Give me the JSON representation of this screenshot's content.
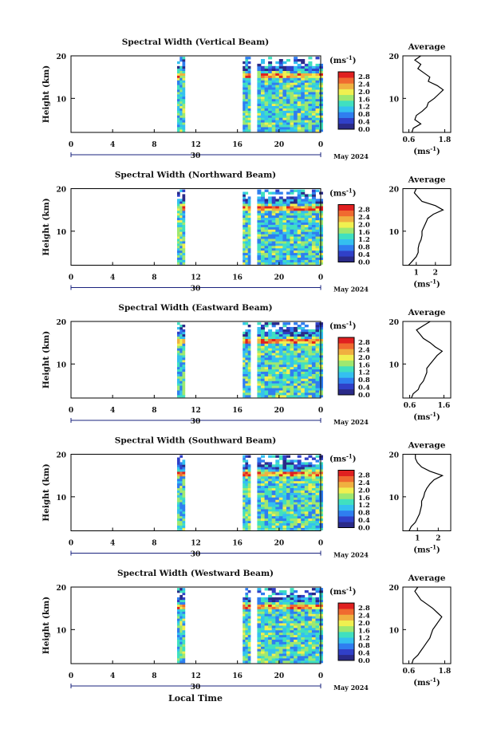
{
  "figure": {
    "xlabel": "Local Time",
    "date_label": "May 2024",
    "day_label": "30",
    "unit_label": "(ms",
    "unit_sup": "-1",
    "unit_close": ")",
    "avg_title": "Average",
    "avg_xlabel": "(ms",
    "ylabel": "Height (km)",
    "colors": [
      "#2a2a88",
      "#3040c8",
      "#2f7ef0",
      "#34c0f0",
      "#40e0c0",
      "#9ee870",
      "#f0f050",
      "#f0b040",
      "#f06a30",
      "#e02020"
    ]
  },
  "chart_data": [
    {
      "type": "heatmap",
      "title": "Spectral Width (Vertical Beam)",
      "x_ticks": [
        "0",
        "4",
        "8",
        "12",
        "16",
        "20",
        "0"
      ],
      "xlim": [
        0,
        24
      ],
      "y_ticks": [
        "20",
        "10"
      ],
      "ylim": [
        2,
        20
      ],
      "colorbar_ticks": [
        "2.8",
        "2.4",
        "2.0",
        "1.6",
        "1.2",
        "0.8",
        "0.4",
        "0.0"
      ],
      "colorbar_range": [
        0,
        2.8
      ],
      "avg_x_ticks": [
        "0.6",
        "1.8"
      ],
      "avg_xlim": [
        0.4,
        2.0
      ],
      "avg_profile": {
        "height": [
          2,
          3,
          4,
          5,
          6,
          7,
          8,
          9,
          10,
          11,
          12,
          13,
          14,
          15,
          16,
          17,
          18,
          19,
          20
        ],
        "value": [
          0.7,
          0.75,
          1.0,
          0.8,
          0.85,
          1.05,
          1.2,
          1.25,
          1.45,
          1.6,
          1.75,
          1.55,
          1.25,
          1.3,
          1.1,
          0.9,
          1.0,
          0.8,
          1.0
        ]
      }
    },
    {
      "type": "heatmap",
      "title": "Spectral Width (Northward Beam)",
      "x_ticks": [
        "0",
        "4",
        "8",
        "12",
        "16",
        "20",
        "0"
      ],
      "xlim": [
        0,
        24
      ],
      "y_ticks": [
        "20",
        "10"
      ],
      "ylim": [
        2,
        20
      ],
      "colorbar_ticks": [
        "2.8",
        "2.4",
        "2.0",
        "1.6",
        "1.2",
        "0.8",
        "0.4",
        "0.0"
      ],
      "colorbar_range": [
        0,
        2.8
      ],
      "avg_x_ticks": [
        "1",
        "2"
      ],
      "avg_xlim": [
        0.3,
        2.8
      ],
      "avg_profile": {
        "height": [
          2,
          3,
          4,
          5,
          6,
          7,
          8,
          9,
          10,
          11,
          12,
          13,
          14,
          15,
          16,
          17,
          18,
          19,
          20
        ],
        "value": [
          0.6,
          0.8,
          1.0,
          1.1,
          1.1,
          1.15,
          1.25,
          1.3,
          1.3,
          1.4,
          1.5,
          1.6,
          1.9,
          2.4,
          2.0,
          1.3,
          1.1,
          0.9,
          1.0
        ]
      }
    },
    {
      "type": "heatmap",
      "title": "Spectral Width (Eastward Beam)",
      "x_ticks": [
        "0",
        "4",
        "8",
        "12",
        "16",
        "20",
        "0"
      ],
      "xlim": [
        0,
        24
      ],
      "y_ticks": [
        "20",
        "10"
      ],
      "ylim": [
        2,
        20
      ],
      "colorbar_ticks": [
        "2.8",
        "2.4",
        "2.0",
        "1.6",
        "1.2",
        "0.8",
        "0.4",
        "0.0"
      ],
      "colorbar_range": [
        0,
        2.8
      ],
      "avg_x_ticks": [
        "0.6",
        "1.6"
      ],
      "avg_xlim": [
        0.4,
        1.8
      ],
      "avg_profile": {
        "height": [
          2,
          3,
          4,
          5,
          6,
          7,
          8,
          9,
          10,
          11,
          12,
          13,
          14,
          15,
          16,
          17,
          18,
          19,
          20
        ],
        "value": [
          0.65,
          0.7,
          0.85,
          0.9,
          1.0,
          1.05,
          1.1,
          1.1,
          1.2,
          1.3,
          1.4,
          1.55,
          1.35,
          1.2,
          1.0,
          0.9,
          0.8,
          1.0,
          1.2
        ]
      }
    },
    {
      "type": "heatmap",
      "title": "Spectral Width (Southward Beam)",
      "x_ticks": [
        "0",
        "4",
        "8",
        "12",
        "16",
        "20",
        "0"
      ],
      "xlim": [
        0,
        24
      ],
      "y_ticks": [
        "20",
        "10"
      ],
      "ylim": [
        2,
        20
      ],
      "colorbar_ticks": [
        "2.8",
        "2.4",
        "2.0",
        "1.6",
        "1.2",
        "0.8",
        "0.4",
        "0.0"
      ],
      "colorbar_range": [
        0,
        2.8
      ],
      "avg_x_ticks": [
        "1",
        "2"
      ],
      "avg_xlim": [
        0.3,
        2.6
      ],
      "avg_profile": {
        "height": [
          2,
          3,
          4,
          5,
          6,
          7,
          8,
          9,
          10,
          11,
          12,
          13,
          14,
          15,
          16,
          17,
          18,
          19,
          20
        ],
        "value": [
          0.6,
          0.7,
          0.9,
          1.0,
          1.1,
          1.15,
          1.2,
          1.2,
          1.3,
          1.35,
          1.45,
          1.6,
          1.8,
          2.2,
          1.6,
          1.2,
          1.0,
          0.9,
          0.9
        ]
      }
    },
    {
      "type": "heatmap",
      "title": "Spectral Width (Westward Beam)",
      "x_ticks": [
        "0",
        "4",
        "8",
        "12",
        "16",
        "20",
        "0"
      ],
      "xlim": [
        0,
        24
      ],
      "y_ticks": [
        "20",
        "10"
      ],
      "ylim": [
        2,
        20
      ],
      "colorbar_ticks": [
        "2.8",
        "2.4",
        "2.0",
        "1.6",
        "1.2",
        "0.8",
        "0.4",
        "0.0"
      ],
      "colorbar_range": [
        0,
        2.8
      ],
      "avg_x_ticks": [
        "0.6",
        "1.8"
      ],
      "avg_xlim": [
        0.4,
        2.0
      ],
      "avg_profile": {
        "height": [
          2,
          3,
          4,
          5,
          6,
          7,
          8,
          9,
          10,
          11,
          12,
          13,
          14,
          15,
          16,
          17,
          18,
          19,
          20
        ],
        "value": [
          0.7,
          0.75,
          0.9,
          1.0,
          1.1,
          1.2,
          1.3,
          1.35,
          1.4,
          1.5,
          1.6,
          1.7,
          1.55,
          1.4,
          1.2,
          1.0,
          0.9,
          0.8,
          0.9
        ]
      }
    }
  ]
}
